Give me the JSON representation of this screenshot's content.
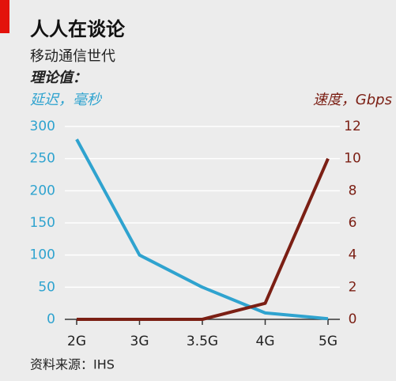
{
  "chart_data": {
    "type": "line",
    "title": "人人在谈论",
    "subtitle": "移动通信世代",
    "note": "理论值：",
    "y_label": "延迟，毫秒",
    "y2_label": "速度，Gbps",
    "source": "资料来源：IHS",
    "categories": [
      "2G",
      "3G",
      "3.5G",
      "4G",
      "5G"
    ],
    "series": [
      {
        "name": "延迟，毫秒",
        "color": "#2fa3cf",
        "values": [
          280,
          100,
          50,
          10,
          1
        ]
      },
      {
        "name": "速度，Gbps",
        "color": "#7b1f14",
        "axis": "y2",
        "values": [
          0,
          0,
          0,
          1,
          10
        ]
      }
    ],
    "ylim": [
      0,
      300
    ],
    "yticks": [
      0,
      50,
      100,
      150,
      200,
      250,
      300
    ],
    "y2lim": [
      0,
      12
    ],
    "y2ticks": [
      0,
      2,
      4,
      6,
      8,
      10,
      12
    ],
    "grid": true
  }
}
